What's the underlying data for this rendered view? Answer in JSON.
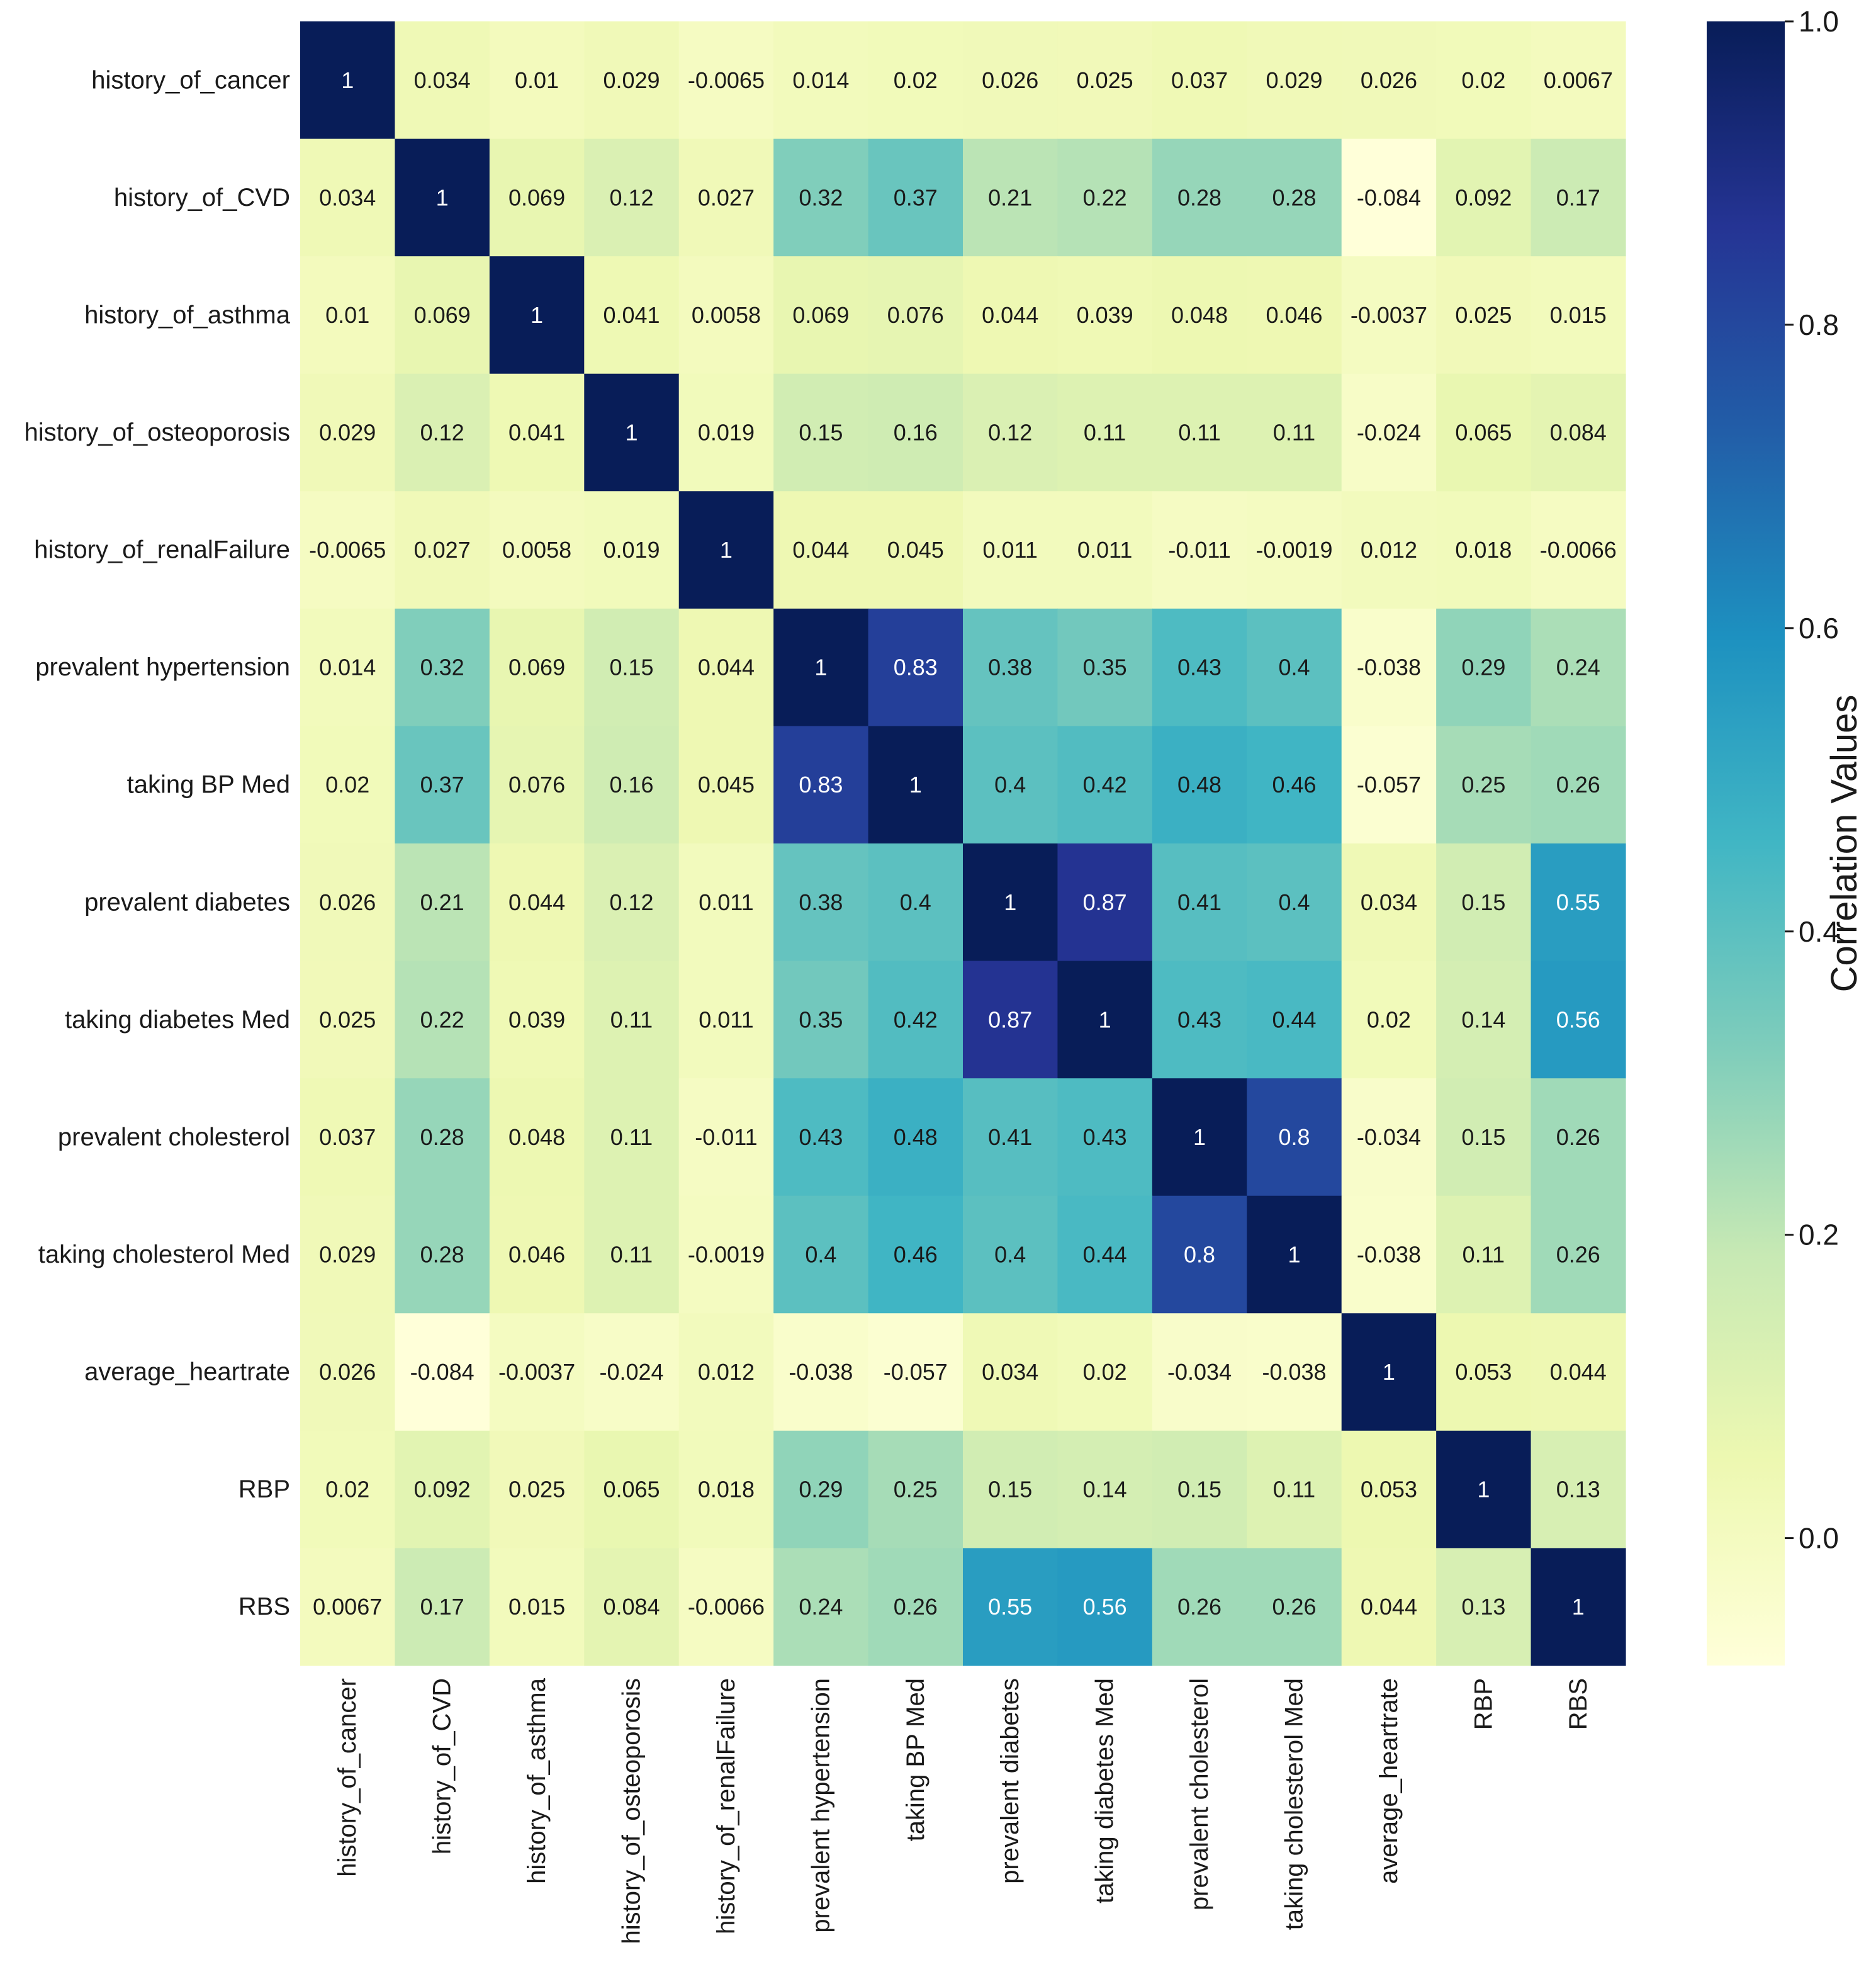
{
  "chart_data": {
    "type": "heatmap",
    "title": "",
    "labels": [
      "history_of_cancer",
      "history_of_CVD",
      "history_of_asthma",
      "history_of_osteoporosis",
      "history_of_renalFailure",
      "prevalent hypertension",
      "taking BP Med",
      "prevalent diabetes",
      "taking diabetes Med",
      "prevalent cholesterol",
      "taking cholesterol Med",
      "average_heartrate",
      "RBP",
      "RBS"
    ],
    "matrix": [
      [
        "1",
        "0.034",
        "0.01",
        "0.029",
        "-0.0065",
        "0.014",
        "0.02",
        "0.026",
        "0.025",
        "0.037",
        "0.029",
        "0.026",
        "0.02",
        "0.0067"
      ],
      [
        "0.034",
        "1",
        "0.069",
        "0.12",
        "0.027",
        "0.32",
        "0.37",
        "0.21",
        "0.22",
        "0.28",
        "0.28",
        "-0.084",
        "0.092",
        "0.17"
      ],
      [
        "0.01",
        "0.069",
        "1",
        "0.041",
        "0.0058",
        "0.069",
        "0.076",
        "0.044",
        "0.039",
        "0.048",
        "0.046",
        "-0.0037",
        "0.025",
        "0.015"
      ],
      [
        "0.029",
        "0.12",
        "0.041",
        "1",
        "0.019",
        "0.15",
        "0.16",
        "0.12",
        "0.11",
        "0.11",
        "0.11",
        "-0.024",
        "0.065",
        "0.084"
      ],
      [
        "-0.0065",
        "0.027",
        "0.0058",
        "0.019",
        "1",
        "0.044",
        "0.045",
        "0.011",
        "0.011",
        "-0.011",
        "-0.0019",
        "0.012",
        "0.018",
        "-0.0066"
      ],
      [
        "0.014",
        "0.32",
        "0.069",
        "0.15",
        "0.044",
        "1",
        "0.83",
        "0.38",
        "0.35",
        "0.43",
        "0.4",
        "-0.038",
        "0.29",
        "0.24"
      ],
      [
        "0.02",
        "0.37",
        "0.076",
        "0.16",
        "0.045",
        "0.83",
        "1",
        "0.4",
        "0.42",
        "0.48",
        "0.46",
        "-0.057",
        "0.25",
        "0.26"
      ],
      [
        "0.026",
        "0.21",
        "0.044",
        "0.12",
        "0.011",
        "0.38",
        "0.4",
        "1",
        "0.87",
        "0.41",
        "0.4",
        "0.034",
        "0.15",
        "0.55"
      ],
      [
        "0.025",
        "0.22",
        "0.039",
        "0.11",
        "0.011",
        "0.35",
        "0.42",
        "0.87",
        "1",
        "0.43",
        "0.44",
        "0.02",
        "0.14",
        "0.56"
      ],
      [
        "0.037",
        "0.28",
        "0.048",
        "0.11",
        "-0.011",
        "0.43",
        "0.48",
        "0.41",
        "0.43",
        "1",
        "0.8",
        "-0.034",
        "0.15",
        "0.26"
      ],
      [
        "0.029",
        "0.28",
        "0.046",
        "0.11",
        "-0.0019",
        "0.4",
        "0.46",
        "0.4",
        "0.44",
        "0.8",
        "1",
        "-0.038",
        "0.11",
        "0.26"
      ],
      [
        "0.026",
        "-0.084",
        "-0.0037",
        "-0.024",
        "0.012",
        "-0.038",
        "-0.057",
        "0.034",
        "0.02",
        "-0.034",
        "-0.038",
        "1",
        "0.053",
        "0.044"
      ],
      [
        "0.02",
        "0.092",
        "0.025",
        "0.065",
        "0.018",
        "0.29",
        "0.25",
        "0.15",
        "0.14",
        "0.15",
        "0.11",
        "0.053",
        "1",
        "0.13"
      ],
      [
        "0.0067",
        "0.17",
        "0.015",
        "0.084",
        "-0.0066",
        "0.24",
        "0.26",
        "0.55",
        "0.56",
        "0.26",
        "0.26",
        "0.044",
        "0.13",
        "1"
      ]
    ],
    "colormap": "YlGnBu",
    "vmin": -0.084,
    "vmax": 1.0,
    "colorbar": {
      "label": "Correlation Values",
      "ticks": [
        0.0,
        0.2,
        0.4,
        0.6,
        0.8,
        1.0
      ],
      "tick_labels": [
        "0.0",
        "0.2",
        "0.4",
        "0.6",
        "0.8",
        "1.0"
      ],
      "placement": "right"
    },
    "grid": false
  }
}
